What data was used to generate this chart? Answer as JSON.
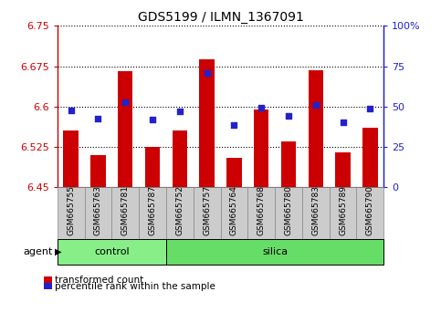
{
  "title": "GDS5199 / ILMN_1367091",
  "samples": [
    "GSM665755",
    "GSM665763",
    "GSM665781",
    "GSM665787",
    "GSM665752",
    "GSM665757",
    "GSM665764",
    "GSM665768",
    "GSM665780",
    "GSM665783",
    "GSM665789",
    "GSM665790"
  ],
  "groups": [
    "control",
    "control",
    "control",
    "control",
    "silica",
    "silica",
    "silica",
    "silica",
    "silica",
    "silica",
    "silica",
    "silica"
  ],
  "bar_values": [
    6.555,
    6.51,
    6.665,
    6.525,
    6.555,
    6.687,
    6.505,
    6.595,
    6.535,
    6.668,
    6.515,
    6.56
  ],
  "blue_values": [
    6.593,
    6.578,
    6.608,
    6.576,
    6.591,
    6.662,
    6.566,
    6.598,
    6.583,
    6.603,
    6.571,
    6.596
  ],
  "ymin": 6.45,
  "ymax": 6.75,
  "yticks_left": [
    6.45,
    6.525,
    6.6,
    6.675,
    6.75
  ],
  "yticks_left_labels": [
    "6.45",
    "6.525",
    "6.6",
    "6.675",
    "6.75"
  ],
  "yticks_right_vals": [
    0,
    25,
    50,
    75,
    100
  ],
  "yticks_right_labels": [
    "0",
    "25",
    "50",
    "75",
    "100%"
  ],
  "bar_color": "#cc0000",
  "blue_color": "#2222cc",
  "tick_bg_color": "#cccccc",
  "tick_border_color": "#888888",
  "control_color": "#88ee88",
  "silica_color": "#66dd66",
  "legend_bar": "transformed count",
  "legend_blue": "percentile rank within the sample",
  "n_control": 4,
  "n_silica": 8
}
